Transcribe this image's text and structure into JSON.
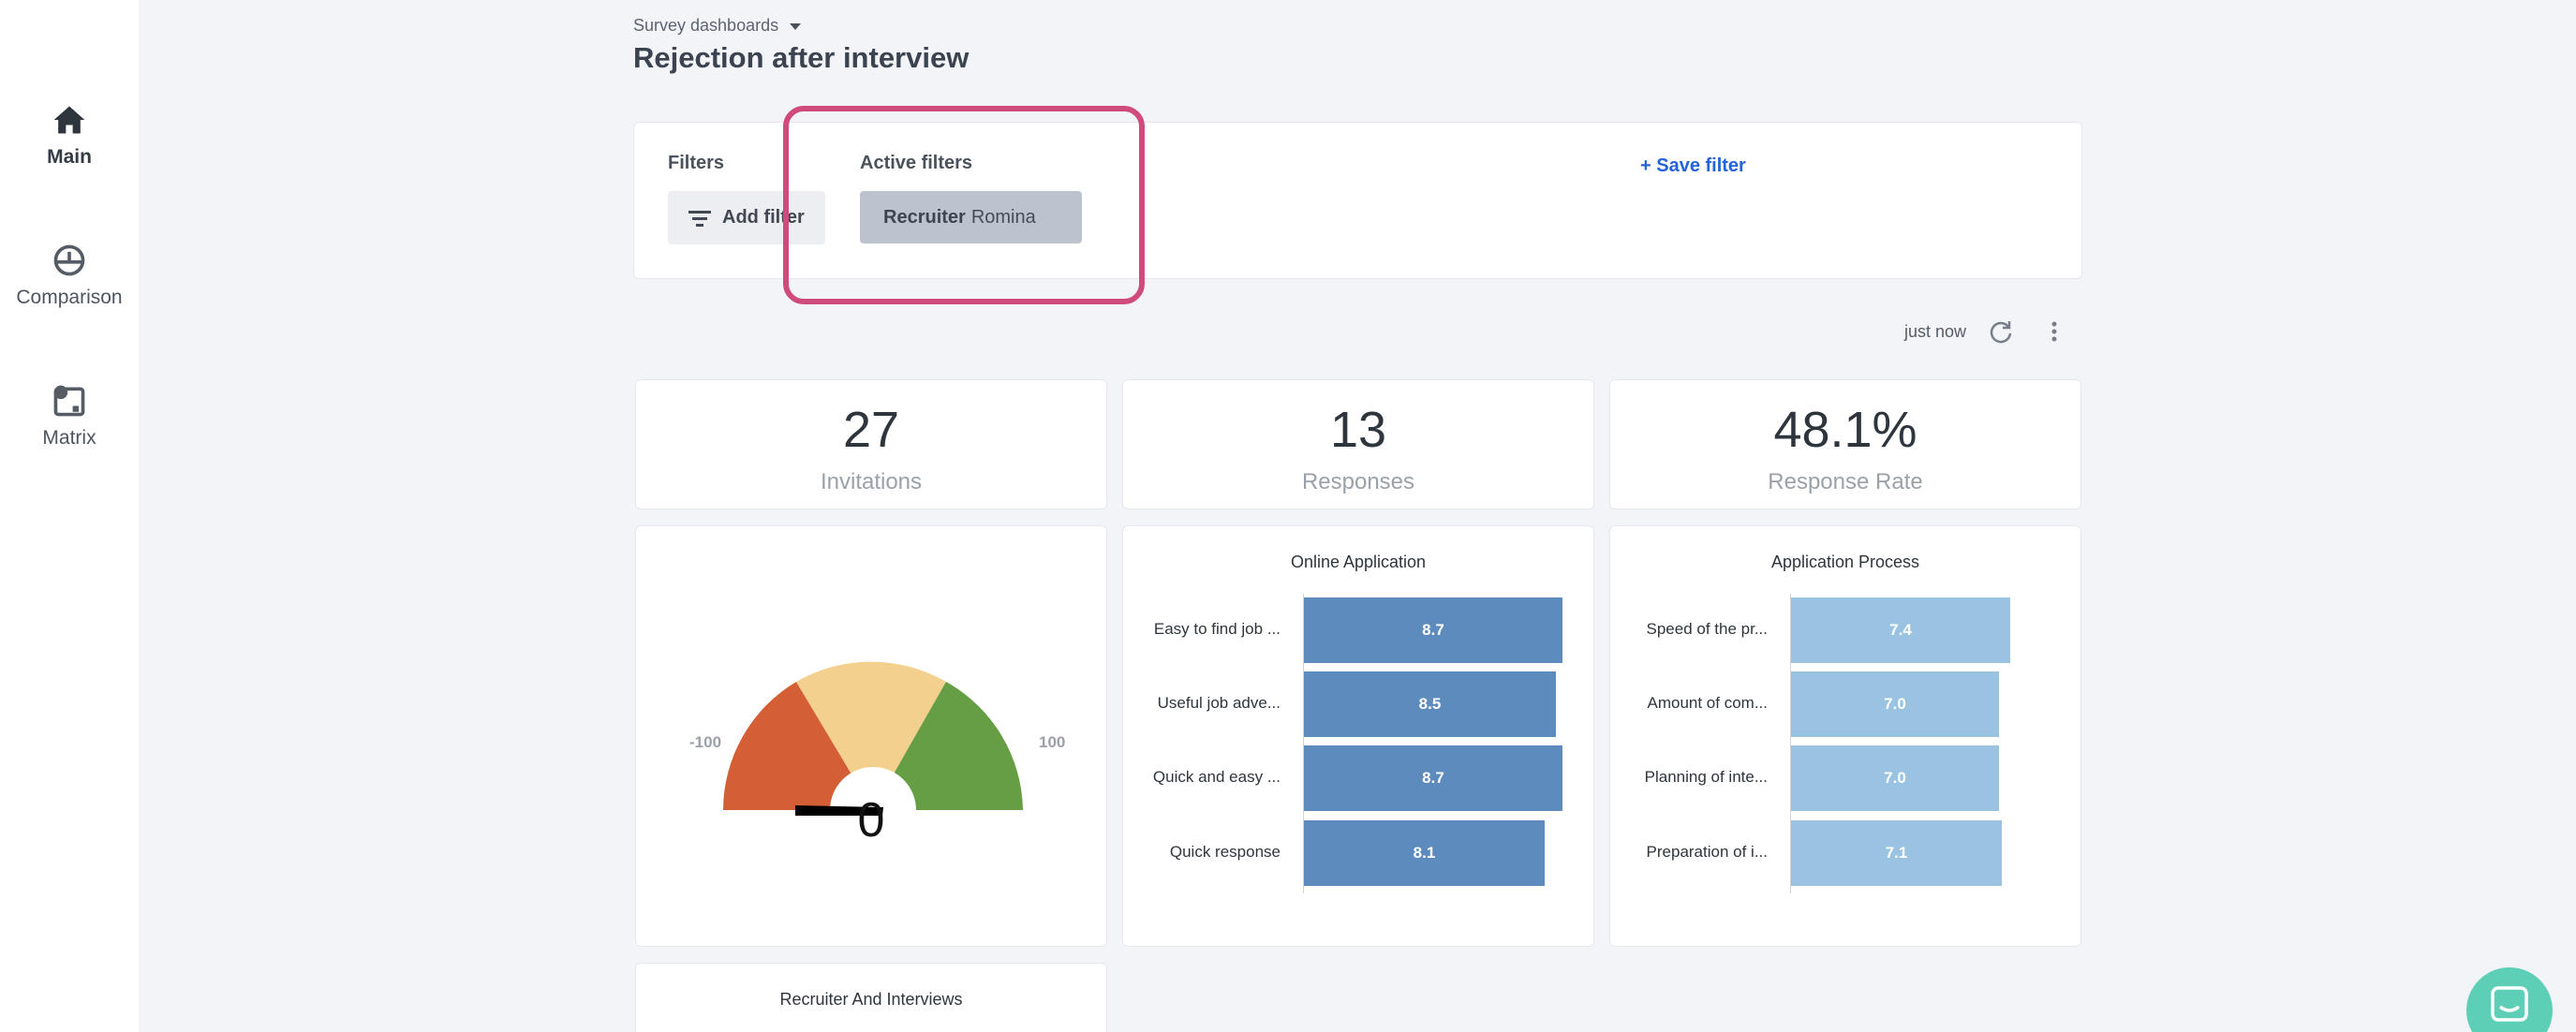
{
  "sidebar": {
    "items": [
      {
        "label": "Main",
        "icon": "home-icon",
        "active": true
      },
      {
        "label": "Comparison",
        "icon": "gauge-icon",
        "active": false
      },
      {
        "label": "Matrix",
        "icon": "matrix-icon",
        "active": false
      }
    ]
  },
  "header": {
    "breadcrumb": "Survey dashboards",
    "title": "Rejection after interview"
  },
  "filters": {
    "label": "Filters",
    "add_label": "Add filter",
    "active_label": "Active filters",
    "chip_key": "Recruiter",
    "chip_value": "Romina",
    "save_label": "+ Save filter"
  },
  "status": {
    "updated": "just now"
  },
  "kpis": [
    {
      "value": "27",
      "label": "Invitations"
    },
    {
      "value": "13",
      "label": "Responses"
    },
    {
      "value": "48.1%",
      "label": "Response Rate"
    }
  ],
  "gauge": {
    "min": "-100",
    "max": "100",
    "value": "0",
    "colors": {
      "negative": "#d45f35",
      "neutral": "#f3d08e",
      "positive": "#659e44"
    }
  },
  "chart_data": [
    {
      "type": "bar",
      "title": "Online Application",
      "categories": [
        "Easy to find job ...",
        "Useful job adve...",
        "Quick and easy ...",
        "Quick response"
      ],
      "values": [
        8.7,
        8.5,
        8.7,
        8.1
      ],
      "color": "#5d8bbd"
    },
    {
      "type": "bar",
      "title": "Application Process",
      "categories": [
        "Speed of the pr...",
        "Amount of com...",
        "Planning of inte...",
        "Preparation of i..."
      ],
      "values": [
        7.4,
        7.0,
        7.0,
        7.1
      ],
      "color": "#9ac3e2"
    }
  ],
  "bottom_card": {
    "title": "Recruiter And Interviews"
  }
}
